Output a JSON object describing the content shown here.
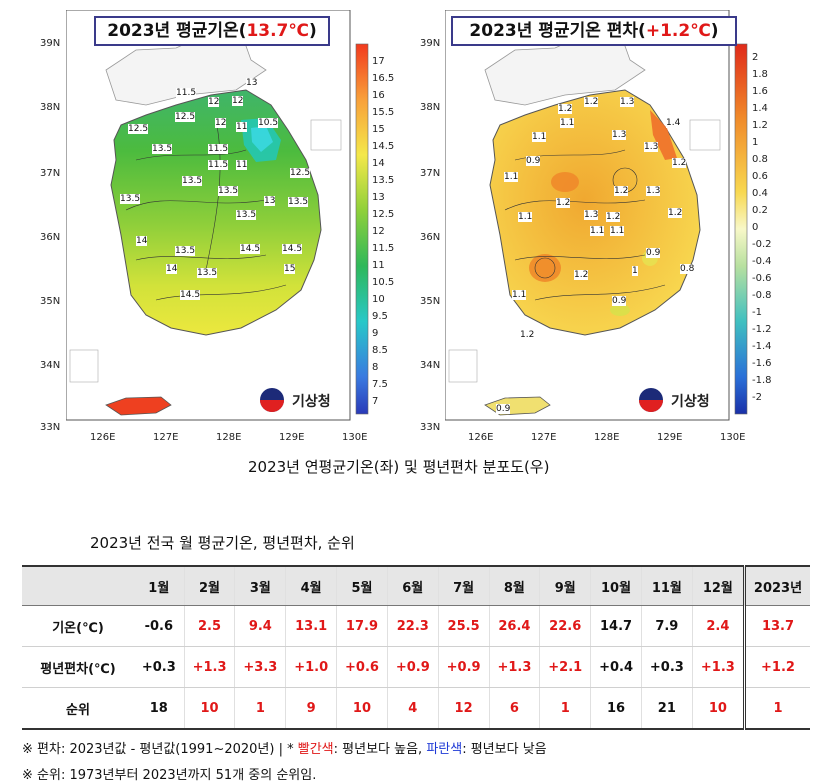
{
  "left_map": {
    "title_prefix": "2023년 평균기온(",
    "title_highlight": "13.7℃",
    "title_suffix": ")",
    "lat_labels": [
      "39N",
      "38N",
      "37N",
      "36N",
      "35N",
      "34N",
      "33N"
    ],
    "lon_labels": [
      "126E",
      "127E",
      "128E",
      "129E",
      "130E"
    ],
    "colorbar_labels": [
      "17",
      "16.5",
      "16",
      "15.5",
      "15",
      "14.5",
      "14",
      "13.5",
      "13",
      "12.5",
      "12",
      "11.5",
      "11",
      "10.5",
      "10",
      "9.5",
      "9",
      "8.5",
      "8",
      "7.5",
      "7"
    ],
    "contour_labels": [
      "11.5",
      "12",
      "12",
      "13",
      "12.5",
      "12",
      "11",
      "10.5",
      "12.5",
      "13.5",
      "11.5",
      "11.5",
      "11",
      "12.5",
      "13.5",
      "13.5",
      "13",
      "13.5",
      "13.5",
      "13.5",
      "14",
      "13.5",
      "14",
      "13.5",
      "14.5",
      "14.5",
      "15",
      "14.5",
      "14"
    ],
    "logo_text": "기상청"
  },
  "right_map": {
    "title_prefix": "2023년 평균기온 편차(",
    "title_highlight": "+1.2℃",
    "title_suffix": ")",
    "lat_labels": [
      "39N",
      "38N",
      "37N",
      "36N",
      "35N",
      "34N",
      "33N"
    ],
    "lon_labels": [
      "126E",
      "127E",
      "128E",
      "129E",
      "130E"
    ],
    "colorbar_labels": [
      "2",
      "1.8",
      "1.6",
      "1.4",
      "1.2",
      "1",
      "0.8",
      "0.6",
      "0.4",
      "0.2",
      "0",
      "-0.2",
      "-0.4",
      "-0.6",
      "-0.8",
      "-1",
      "-1.2",
      "-1.4",
      "-1.6",
      "-1.8",
      "-2"
    ],
    "contour_labels": [
      "1.2",
      "1.2",
      "1.3",
      "1.1",
      "1.4",
      "1.3",
      "1.1",
      "1.3",
      "0.9",
      "1.2",
      "1.1",
      "1.2",
      "1.3",
      "1.2",
      "1.2",
      "1.1",
      "1.3",
      "1.2",
      "1.1",
      "1.1",
      "0.9",
      "1.2",
      "1",
      "0.8",
      "1.1",
      "0.9",
      "1.2",
      "0.9"
    ],
    "logo_text": "기상청"
  },
  "map_caption": "2023년 연평균기온(좌) 및 평년편차 분포도(우)",
  "table_caption": "2023년 전국 월 평균기온, 평년편차, 순위",
  "table": {
    "headers": [
      "",
      "1월",
      "2월",
      "3월",
      "4월",
      "5월",
      "6월",
      "7월",
      "8월",
      "9월",
      "10월",
      "11월",
      "12월",
      "2023년"
    ],
    "rows": [
      {
        "label": "기온(℃)",
        "values": [
          "-0.6",
          "2.5",
          "9.4",
          "13.1",
          "17.9",
          "22.3",
          "25.5",
          "26.4",
          "22.6",
          "14.7",
          "7.9",
          "2.4",
          "13.7"
        ],
        "red": [
          false,
          true,
          true,
          true,
          true,
          true,
          true,
          true,
          true,
          false,
          false,
          true,
          true
        ]
      },
      {
        "label": "평년편차(℃)",
        "values": [
          "+0.3",
          "+1.3",
          "+3.3",
          "+1.0",
          "+0.6",
          "+0.9",
          "+0.9",
          "+1.3",
          "+2.1",
          "+0.4",
          "+0.3",
          "+1.3",
          "+1.2"
        ],
        "red": [
          false,
          true,
          true,
          true,
          true,
          true,
          true,
          true,
          true,
          false,
          false,
          true,
          true
        ]
      },
      {
        "label": "순위",
        "values": [
          "18",
          "10",
          "1",
          "9",
          "10",
          "4",
          "12",
          "6",
          "1",
          "16",
          "21",
          "10",
          "1"
        ],
        "red": [
          false,
          true,
          true,
          true,
          true,
          true,
          true,
          true,
          true,
          false,
          false,
          true,
          true
        ]
      }
    ]
  },
  "notes": {
    "note1_prefix": "※ 편차: 2023년값 - 평년값(1991~2020년) | * ",
    "note1_red": "빨간색",
    "note1_mid": ": 평년보다 높음, ",
    "note1_blue": "파란색",
    "note1_suffix": ": 평년보다 낮음",
    "note2": "※ 순위: 1973년부터 2023년까지 51개 중의 순위임."
  },
  "colors": {
    "accent_red": "#e01818",
    "accent_blue": "#1f3ad6",
    "title_border": "#3a3a8a"
  }
}
